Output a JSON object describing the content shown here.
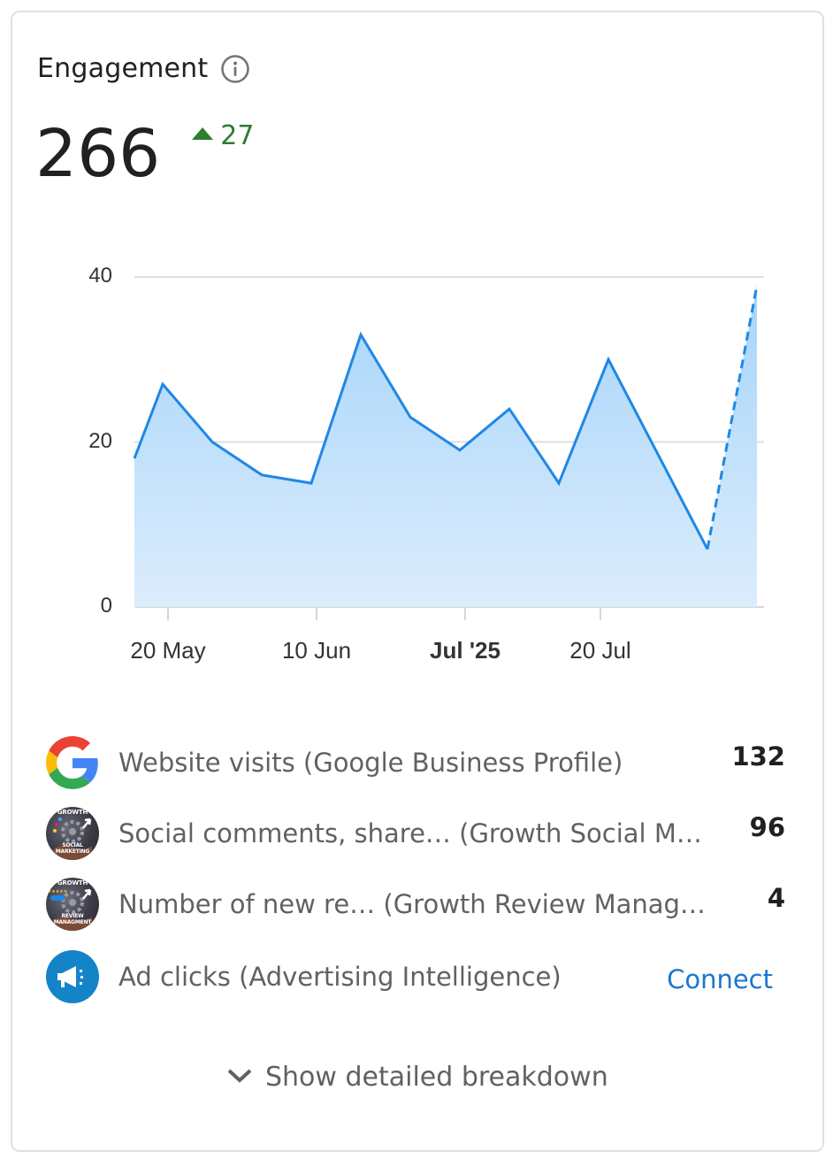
{
  "card": {
    "title": "Engagement",
    "info_icon": "info-circle-icon",
    "metric_value": "266",
    "delta": {
      "direction": "up",
      "value": "27",
      "color": "#2e7d32"
    }
  },
  "chart_data": {
    "type": "area",
    "title": "Engagement",
    "xlabel": "",
    "ylabel": "",
    "ylim": [
      0,
      40
    ],
    "yticks": [
      0,
      20,
      40
    ],
    "grid": true,
    "x_tick_labels": [
      {
        "label": "20 May",
        "bold": false
      },
      {
        "label": "10 Jun",
        "bold": false
      },
      {
        "label": "Jul '25",
        "bold": true
      },
      {
        "label": "20 Jul",
        "bold": false
      }
    ],
    "series": [
      {
        "name": "Engagement",
        "color": "#1e88e5",
        "fill": "#b3dbfb",
        "values": [
          18,
          27,
          20,
          16,
          15,
          33,
          23,
          19,
          24,
          15,
          30,
          18.5,
          7,
          39
        ],
        "dashed_last_segment": true
      }
    ],
    "legend": "none"
  },
  "sources": [
    {
      "icon": "google-g-icon",
      "label": "Website visits (Google Business Profile)",
      "value": "132"
    },
    {
      "icon": "growth-social-marketing-avatar",
      "avatar_text_top": "GROWTH",
      "avatar_text_bottom": "SOCIAL MARKETING",
      "label": "Social comments, share…  (Growth Social M…",
      "value": "96"
    },
    {
      "icon": "growth-review-management-avatar",
      "avatar_text_top": "GROWTH",
      "avatar_text_bottom": "REVIEW MANAGMENT",
      "label": "Number of new re…  (Growth Review Manag…",
      "value": "4"
    },
    {
      "icon": "megaphone-icon",
      "label": "Ad clicks (Advertising Intelligence)",
      "action": "Connect",
      "accent": "#1976d2"
    }
  ],
  "footer": {
    "toggle_label": "Show detailed breakdown",
    "toggle_icon": "chevron-down-icon"
  }
}
